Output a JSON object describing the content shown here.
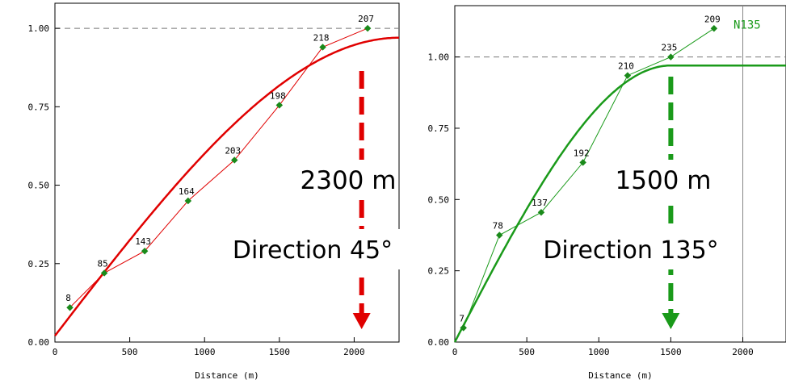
{
  "chart_data": [
    {
      "type": "line",
      "xlabel": "Distance (m)",
      "ylabel": "",
      "xlim": [
        0,
        2300
      ],
      "ylim": [
        0,
        1.08
      ],
      "x_ticks": [
        0,
        500,
        1000,
        1500,
        2000
      ],
      "y_ticks": [
        "0.00",
        "0.25",
        "0.50",
        "0.75",
        "1.00"
      ],
      "y_tick_values": [
        0,
        0.25,
        0.5,
        0.75,
        1.0
      ],
      "sill": 1.0,
      "color": "#e00000",
      "point_color": "#1a8a1a",
      "experimental": [
        {
          "x": 100,
          "y": 0.11,
          "label": "8"
        },
        {
          "x": 330,
          "y": 0.22,
          "label": "85"
        },
        {
          "x": 600,
          "y": 0.29,
          "label": "143"
        },
        {
          "x": 890,
          "y": 0.45,
          "label": "164"
        },
        {
          "x": 1200,
          "y": 0.58,
          "label": "203"
        },
        {
          "x": 1500,
          "y": 0.755,
          "label": "198"
        },
        {
          "x": 1790,
          "y": 0.94,
          "label": "218"
        },
        {
          "x": 2090,
          "y": 1.0,
          "label": "207"
        }
      ],
      "model": {
        "nugget": 0.02,
        "sill": 0.97,
        "range": 2300
      },
      "annotations": {
        "range_text": "2300 m",
        "direction_text": "Direction 45°"
      },
      "arrow_x": 2050
    },
    {
      "type": "line",
      "xlabel": "Distance (m)",
      "ylabel": "",
      "xlim": [
        0,
        2300
      ],
      "ylim": [
        0,
        1.18
      ],
      "x_ticks": [
        0,
        500,
        1000,
        1500,
        2000
      ],
      "y_ticks": [
        "0.00",
        "0.25",
        "0.50",
        "0.75",
        "1.00"
      ],
      "y_tick_values": [
        0,
        0.25,
        0.5,
        0.75,
        1.0
      ],
      "sill": 1.0,
      "color": "#1a9a1a",
      "point_color": "#1a8a1a",
      "experimental": [
        {
          "x": 60,
          "y": 0.05,
          "label": "7"
        },
        {
          "x": 310,
          "y": 0.375,
          "label": "78"
        },
        {
          "x": 600,
          "y": 0.455,
          "label": "137"
        },
        {
          "x": 890,
          "y": 0.63,
          "label": "192"
        },
        {
          "x": 1200,
          "y": 0.935,
          "label": "210"
        },
        {
          "x": 1500,
          "y": 1.0,
          "label": "235"
        },
        {
          "x": 1800,
          "y": 1.1,
          "label": "209"
        }
      ],
      "model": {
        "nugget": 0.0,
        "sill": 0.97,
        "range": 1500
      },
      "annotations": {
        "range_text": "1500 m",
        "direction_text": "Direction 135°",
        "series_tag": "N135"
      },
      "arrow_x": 1500,
      "vline_x": 2000
    }
  ]
}
